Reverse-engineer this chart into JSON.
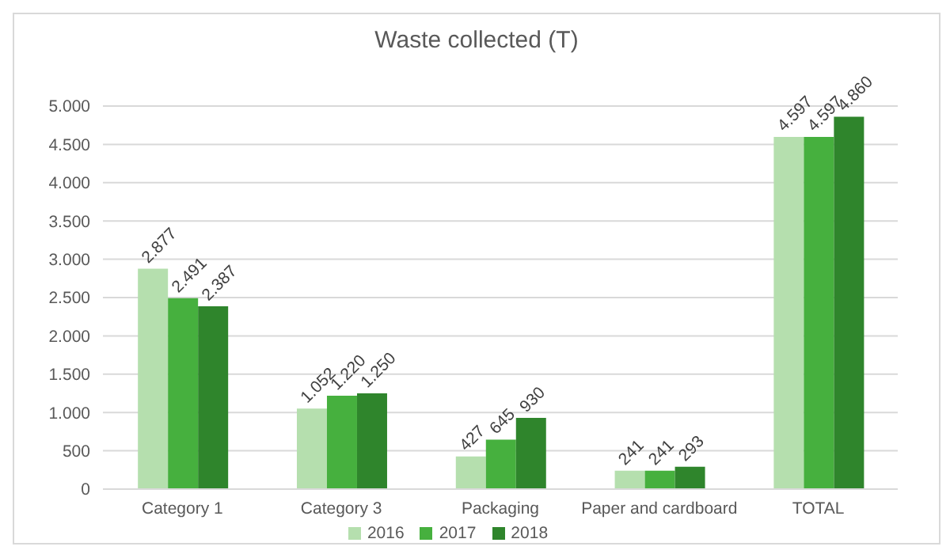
{
  "chart_data": {
    "type": "bar",
    "title": "Waste collected (T)",
    "categories": [
      "Category 1",
      "Category 3",
      "Packaging",
      "Paper and cardboard",
      "TOTAL"
    ],
    "series": [
      {
        "name": "2016",
        "color": "#b5dfae",
        "values": [
          2877,
          1052,
          427,
          241,
          4597
        ],
        "value_labels": [
          "2.877",
          "1.052",
          "427",
          "241",
          "4.597"
        ]
      },
      {
        "name": "2017",
        "color": "#46b03e",
        "values": [
          2491,
          1220,
          645,
          241,
          4597
        ],
        "value_labels": [
          "2.491",
          "1.220",
          "645",
          "241",
          "4.597"
        ]
      },
      {
        "name": "2018",
        "color": "#2f852c",
        "values": [
          2387,
          1250,
          930,
          293,
          4860
        ],
        "value_labels": [
          "2.387",
          "1.250",
          "930",
          "293",
          "4.860"
        ]
      }
    ],
    "ylim": [
      0,
      5000
    ],
    "yticks": [
      {
        "value": 0,
        "label": "0"
      },
      {
        "value": 500,
        "label": "500"
      },
      {
        "value": 1000,
        "label": "1.000"
      },
      {
        "value": 1500,
        "label": "1.500"
      },
      {
        "value": 2000,
        "label": "2.000"
      },
      {
        "value": 2500,
        "label": "2.500"
      },
      {
        "value": 3000,
        "label": "3.000"
      },
      {
        "value": 3500,
        "label": "3.500"
      },
      {
        "value": 4000,
        "label": "4.000"
      },
      {
        "value": 4500,
        "label": "4.500"
      },
      {
        "value": 5000,
        "label": "5.000"
      }
    ],
    "grid": "y",
    "legend": "bottom"
  }
}
